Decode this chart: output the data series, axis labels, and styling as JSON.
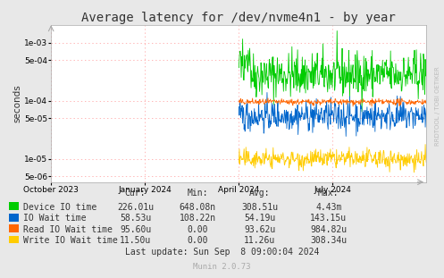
{
  "title": "Average latency for /dev/nvme4n1 - by year",
  "ylabel": "seconds",
  "background_color": "#e8e8e8",
  "plot_bg_color": "#ffffff",
  "grid_color": "#ff9999",
  "yticks": [
    5e-06,
    1e-05,
    5e-05,
    0.0001,
    0.0005,
    0.001
  ],
  "ytick_labels": [
    "5e-06",
    "1e-05",
    "5e-05",
    "1e-04",
    "5e-04",
    "1e-03"
  ],
  "xtick_positions": [
    0.0,
    0.25,
    0.5,
    0.75
  ],
  "xtick_labels": [
    "October 2023",
    "January 2024",
    "April 2024",
    "July 2024"
  ],
  "legend_labels": [
    "Device IO time",
    "IO Wait time",
    "Read IO Wait time",
    "Write IO Wait time"
  ],
  "legend_colors": [
    "#00cc00",
    "#0066cc",
    "#ff6600",
    "#ffcc00"
  ],
  "stats_header": [
    "Cur:",
    "Min:",
    "Avg:",
    "Max:"
  ],
  "stats": [
    [
      "226.01u",
      "648.08n",
      "308.51u",
      "4.43m"
    ],
    [
      "58.53u",
      "108.22n",
      "54.19u",
      "143.15u"
    ],
    [
      "95.60u",
      "0.00",
      "93.62u",
      "984.82u"
    ],
    [
      "11.50u",
      "0.00",
      "11.26u",
      "308.34u"
    ]
  ],
  "last_update": "Last update: Sun Sep  8 09:00:04 2024",
  "munin_version": "Munin 2.0.73",
  "rrdtool_text": "RRDTOOL / TOBI OETIKER"
}
